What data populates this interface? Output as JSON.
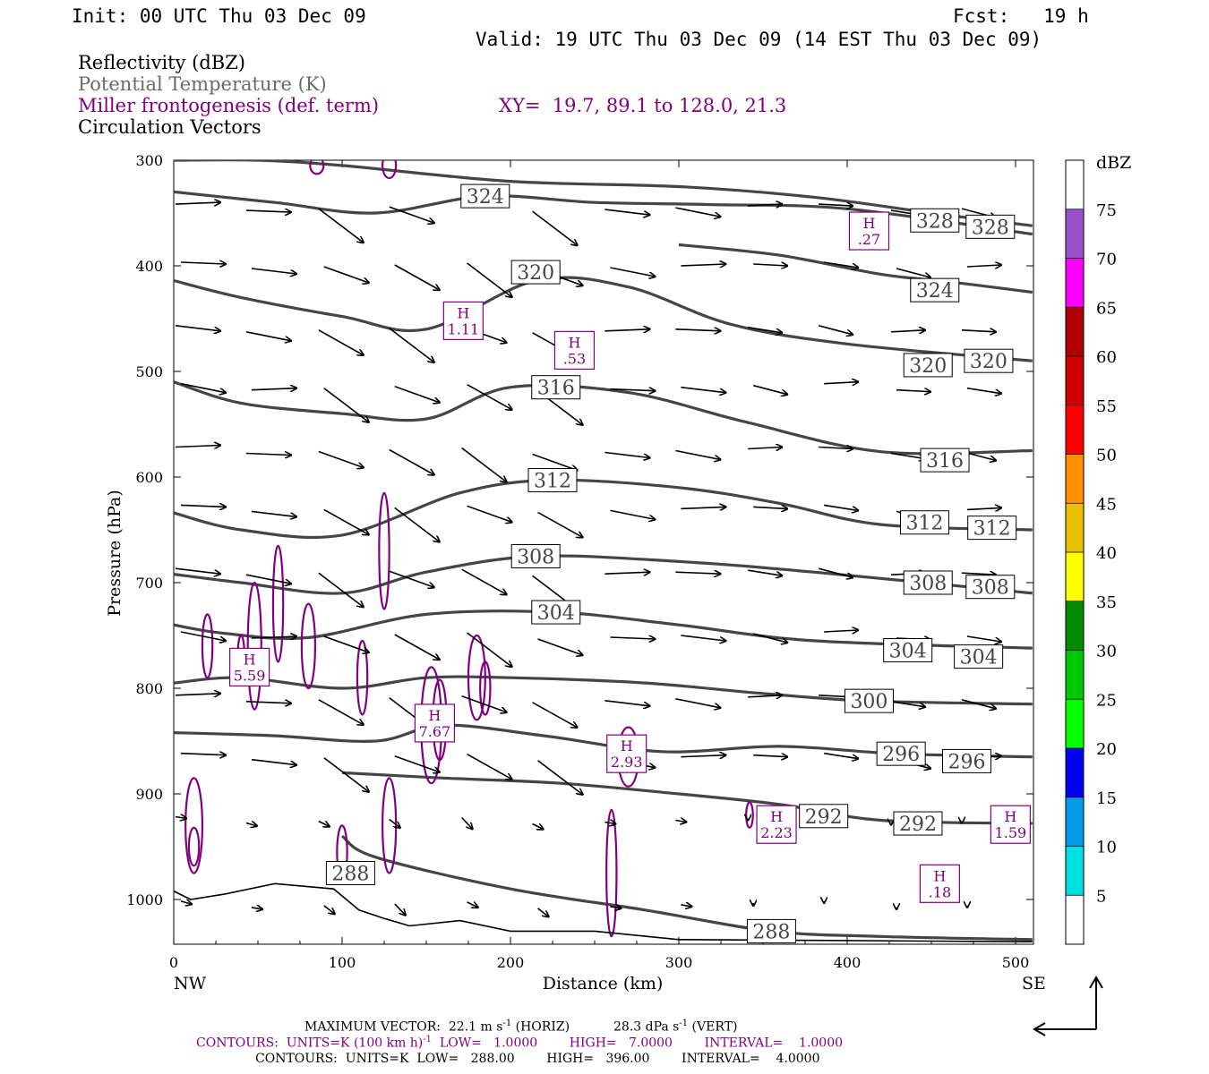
{
  "header": {
    "init": "Init: 00 UTC Thu 03 Dec 09",
    "fcst": "Fcst:   19 h",
    "valid": "Valid: 19 UTC Thu 03 Dec 09 (14 EST Thu 03 Dec 09)"
  },
  "legend": {
    "reflectivity": "Reflectivity (dBZ)",
    "theta": "Potential Temperature (K)",
    "miller": "Miller frontogenesis (def. term)",
    "xy": "XY=  19.7, 89.1 to 128.0, 21.3",
    "vectors": "Circulation Vectors"
  },
  "colors": {
    "theta_line": "#454545",
    "miller": "#800080",
    "vector": "#000000"
  },
  "footer": {
    "max_vector_label": "MAXIMUM VECTOR:",
    "max_vector_horiz": "22.1 m s",
    "max_vector_horiz_exp": "-1",
    "max_vector_horiz_unit": " (HORIZ)",
    "max_vector_vert": "28.3 dPa s",
    "max_vector_vert_exp": "-1",
    "max_vector_vert_unit": " (VERT)",
    "contours1_a": "CONTOURS:  UNITS=K (100 km h)",
    "contours1_exp": "-1",
    "contours1_b": "  LOW=   1.0000        HIGH=   7.0000        INTERVAL=    1.0000",
    "contours2": "CONTOURS:  UNITS=K  LOW=   288.00        HIGH=   396.00        INTERVAL=    4.0000"
  },
  "chart_data": {
    "type": "line",
    "title": "",
    "xlabel": "Distance (km)",
    "ylabel": "Pressure (hPa)",
    "xlim": [
      0,
      510
    ],
    "ylim": [
      1040,
      300
    ],
    "x_ticks": [
      0,
      100,
      200,
      300,
      400,
      500
    ],
    "y_ticks": [
      300,
      400,
      500,
      600,
      700,
      800,
      900,
      1000
    ],
    "x_end_labels": [
      "NW",
      "SE"
    ],
    "theta_contours": [
      {
        "name": "324",
        "labels": [
          {
            "x": 185,
            "p": 334
          }
        ],
        "points": [
          [
            0,
            330
          ],
          [
            60,
            340
          ],
          [
            120,
            350
          ],
          [
            185,
            334
          ],
          [
            250,
            340
          ],
          [
            320,
            342
          ],
          [
            400,
            346
          ],
          [
            510,
            370
          ]
        ]
      },
      {
        "name": "328",
        "labels": [
          {
            "x": 452,
            "p": 357
          },
          {
            "x": 485,
            "p": 363
          }
        ],
        "points": [
          [
            0,
            300
          ],
          [
            50,
            300
          ],
          [
            100,
            305
          ],
          [
            200,
            320
          ],
          [
            300,
            325
          ],
          [
            380,
            335
          ],
          [
            450,
            350
          ],
          [
            510,
            362
          ]
        ]
      },
      {
        "name": "320",
        "labels": [
          {
            "x": 215,
            "p": 406
          },
          {
            "x": 448,
            "p": 494
          },
          {
            "x": 484,
            "p": 490
          }
        ],
        "points": [
          [
            0,
            414
          ],
          [
            40,
            430
          ],
          [
            100,
            448
          ],
          [
            150,
            460
          ],
          [
            215,
            414
          ],
          [
            270,
            420
          ],
          [
            330,
            455
          ],
          [
            400,
            474
          ],
          [
            510,
            490
          ]
        ]
      },
      {
        "name": "324",
        "labels": [
          {
            "x": 452,
            "p": 423
          }
        ],
        "points": [
          [
            300,
            380
          ],
          [
            360,
            390
          ],
          [
            420,
            408
          ],
          [
            460,
            415
          ],
          [
            510,
            425
          ]
        ]
      },
      {
        "name": "316",
        "labels": [
          {
            "x": 227,
            "p": 515
          },
          {
            "x": 458,
            "p": 584
          }
        ],
        "points": [
          [
            0,
            510
          ],
          [
            40,
            530
          ],
          [
            100,
            540
          ],
          [
            150,
            545
          ],
          [
            200,
            515
          ],
          [
            270,
            520
          ],
          [
            340,
            548
          ],
          [
            420,
            576
          ],
          [
            510,
            575
          ]
        ]
      },
      {
        "name": "312",
        "labels": [
          {
            "x": 225,
            "p": 603
          },
          {
            "x": 446,
            "p": 643
          },
          {
            "x": 486,
            "p": 648
          }
        ],
        "points": [
          [
            0,
            634
          ],
          [
            40,
            650
          ],
          [
            100,
            655
          ],
          [
            170,
            615
          ],
          [
            225,
            603
          ],
          [
            300,
            610
          ],
          [
            360,
            625
          ],
          [
            420,
            645
          ],
          [
            510,
            650
          ]
        ]
      },
      {
        "name": "308",
        "labels": [
          {
            "x": 215,
            "p": 675
          },
          {
            "x": 448,
            "p": 700
          },
          {
            "x": 485,
            "p": 704
          }
        ],
        "points": [
          [
            0,
            692
          ],
          [
            40,
            700
          ],
          [
            100,
            710
          ],
          [
            150,
            690
          ],
          [
            215,
            675
          ],
          [
            300,
            680
          ],
          [
            380,
            690
          ],
          [
            510,
            710
          ]
        ]
      },
      {
        "name": "304",
        "labels": [
          {
            "x": 227,
            "p": 728
          },
          {
            "x": 436,
            "p": 764
          },
          {
            "x": 478,
            "p": 770
          }
        ],
        "points": [
          [
            0,
            740
          ],
          [
            30,
            748
          ],
          [
            80,
            752
          ],
          [
            150,
            730
          ],
          [
            227,
            728
          ],
          [
            300,
            740
          ],
          [
            380,
            755
          ],
          [
            510,
            762
          ]
        ]
      },
      {
        "name": "300",
        "labels": [
          {
            "x": 413,
            "p": 812
          }
        ],
        "points": [
          [
            0,
            795
          ],
          [
            40,
            790
          ],
          [
            100,
            800
          ],
          [
            150,
            790
          ],
          [
            200,
            790
          ],
          [
            280,
            795
          ],
          [
            350,
            805
          ],
          [
            413,
            812
          ],
          [
            510,
            815
          ]
        ]
      },
      {
        "name": "296",
        "labels": [
          {
            "x": 432,
            "p": 862
          },
          {
            "x": 471,
            "p": 869
          }
        ],
        "points": [
          [
            0,
            842
          ],
          [
            60,
            845
          ],
          [
            120,
            850
          ],
          [
            160,
            835
          ],
          [
            220,
            845
          ],
          [
            290,
            860
          ],
          [
            360,
            855
          ],
          [
            430,
            862
          ],
          [
            510,
            865
          ]
        ]
      },
      {
        "name": "292",
        "labels": [
          {
            "x": 386,
            "p": 921
          },
          {
            "x": 442,
            "p": 928
          }
        ],
        "points": [
          [
            100,
            880
          ],
          [
            160,
            885
          ],
          [
            230,
            890
          ],
          [
            300,
            900
          ],
          [
            360,
            910
          ],
          [
            420,
            925
          ],
          [
            510,
            928
          ]
        ]
      },
      {
        "name": "288",
        "labels": [
          {
            "x": 105,
            "p": 975
          },
          {
            "x": 355,
            "p": 1030
          }
        ],
        "points": [
          [
            100,
            940
          ],
          [
            120,
            960
          ],
          [
            200,
            990
          ],
          [
            280,
            1010
          ],
          [
            355,
            1030
          ],
          [
            420,
            1035
          ],
          [
            510,
            1038
          ]
        ]
      }
    ],
    "miller_maxima": [
      {
        "label": "H",
        "value": "5.59",
        "x": 45,
        "p": 780
      },
      {
        "label": "H",
        "value": "1.11",
        "x": 172,
        "p": 452
      },
      {
        "label": "H",
        "value": ".53",
        "x": 238,
        "p": 480
      },
      {
        "label": "H",
        "value": "7.67",
        "x": 155,
        "p": 833
      },
      {
        "label": "H",
        "value": "2.93",
        "x": 269,
        "p": 862
      },
      {
        "label": "H",
        "value": ".27",
        "x": 413,
        "p": 367
      },
      {
        "label": "H",
        "value": "2.23",
        "x": 358,
        "p": 929
      },
      {
        "label": "H",
        "value": "1.59",
        "x": 497,
        "p": 929
      },
      {
        "label": "H",
        "value": ".18",
        "x": 455,
        "p": 985
      }
    ],
    "terrain": [
      [
        0,
        992
      ],
      [
        10,
        1000
      ],
      [
        30,
        995
      ],
      [
        60,
        985
      ],
      [
        95,
        990
      ],
      [
        110,
        1010
      ],
      [
        125,
        1018
      ],
      [
        140,
        1025
      ],
      [
        170,
        1020
      ],
      [
        200,
        1030
      ],
      [
        250,
        1030
      ],
      [
        300,
        1038
      ],
      [
        510,
        1040
      ]
    ]
  },
  "colorbar": {
    "unit": "dBZ",
    "levels": [
      "5",
      "10",
      "15",
      "20",
      "25",
      "30",
      "35",
      "40",
      "45",
      "50",
      "55",
      "60",
      "65",
      "70",
      "75"
    ],
    "colors": [
      "#ffffff",
      "#00e0e0",
      "#0098e8",
      "#0000f0",
      "#00ff00",
      "#00c800",
      "#008c00",
      "#ffff00",
      "#e8c000",
      "#ff9000",
      "#ff0000",
      "#d00000",
      "#b00000",
      "#ff00ff",
      "#9a50c8",
      "#ffffff"
    ]
  }
}
